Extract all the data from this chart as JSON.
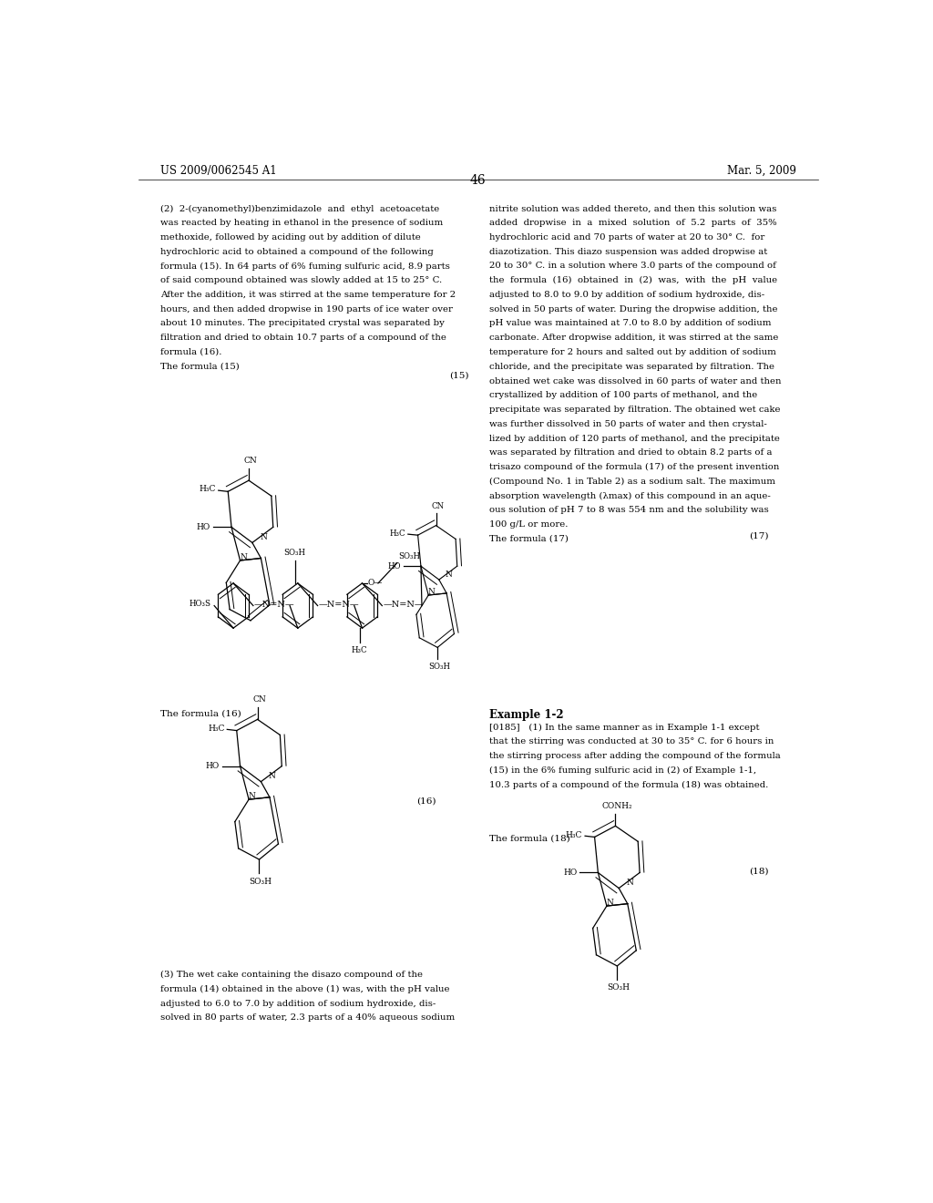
{
  "page_number": "46",
  "header_left": "US 2009/0062545 A1",
  "header_right": "Mar. 5, 2009",
  "background_color": "#ffffff",
  "text_color": "#000000",
  "left_col_text": [
    "(2)  2-(cyanomethyl)benzimidazole  and  ethyl  acetoacetate",
    "was reacted by heating in ethanol in the presence of sodium",
    "methoxide, followed by aciding out by addition of dilute",
    "hydrochloric acid to obtained a compound of the following",
    "formula (15). In 64 parts of 6% fuming sulfuric acid, 8.9 parts",
    "of said compound obtained was slowly added at 15 to 25° C.",
    "After the addition, it was stirred at the same temperature for 2",
    "hours, and then added dropwise in 190 parts of ice water over",
    "about 10 minutes. The precipitated crystal was separated by",
    "filtration and dried to obtain 10.7 parts of a compound of the",
    "formula (16).",
    "The formula (15)"
  ],
  "right_col_text_top": [
    "nitrite solution was added thereto, and then this solution was",
    "added  dropwise  in  a  mixed  solution  of  5.2  parts  of  35%",
    "hydrochloric acid and 70 parts of water at 20 to 30° C.  for",
    "diazotization. This diazo suspension was added dropwise at",
    "20 to 30° C. in a solution where 3.0 parts of the compound of",
    "the  formula  (16)  obtained  in  (2)  was,  with  the  pH  value",
    "adjusted to 8.0 to 9.0 by addition of sodium hydroxide, dis-",
    "solved in 50 parts of water. During the dropwise addition, the",
    "pH value was maintained at 7.0 to 8.0 by addition of sodium",
    "carbonate. After dropwise addition, it was stirred at the same",
    "temperature for 2 hours and salted out by addition of sodium",
    "chloride, and the precipitate was separated by filtration. The",
    "obtained wet cake was dissolved in 60 parts of water and then",
    "crystallized by addition of 100 parts of methanol, and the",
    "precipitate was separated by filtration. The obtained wet cake",
    "was further dissolved in 50 parts of water and then crystal-",
    "lized by addition of 120 parts of methanol, and the precipitate",
    "was separated by filtration and dried to obtain 8.2 parts of a",
    "trisazo compound of the formula (17) of the present invention",
    "(Compound No. 1 in Table 2) as a sodium salt. The maximum",
    "absorption wavelength (λmax) of this compound in an aque-",
    "ous solution of pH 7 to 8 was 554 nm and the solubility was",
    "100 g/L or more.",
    "The formula (17)"
  ],
  "bottom_left_label": "The formula (16)",
  "bottom_right_label": "Example 1-2",
  "example_12_text": "[0185]   (1) In the same manner as in Example 1-1 except\nthat the stirring was conducted at 30 to 35° C. for 6 hours in\nthe stirring process after adding the compound of the formula\n(15) in the 6% fuming sulfuric acid in (2) of Example 1-1,\n10.3 parts of a compound of the formula (18) was obtained.",
  "formula_18_label": "The formula (18)",
  "bottom_left_text": "(3) The wet cake containing the disazo compound of the\nformula (14) obtained in the above (1) was, with the pH value\nadjusted to 6.0 to 7.0 by addition of sodium hydroxide, dis-\nsolved in 80 parts of water, 2.3 parts of a 40% aqueous sodium"
}
